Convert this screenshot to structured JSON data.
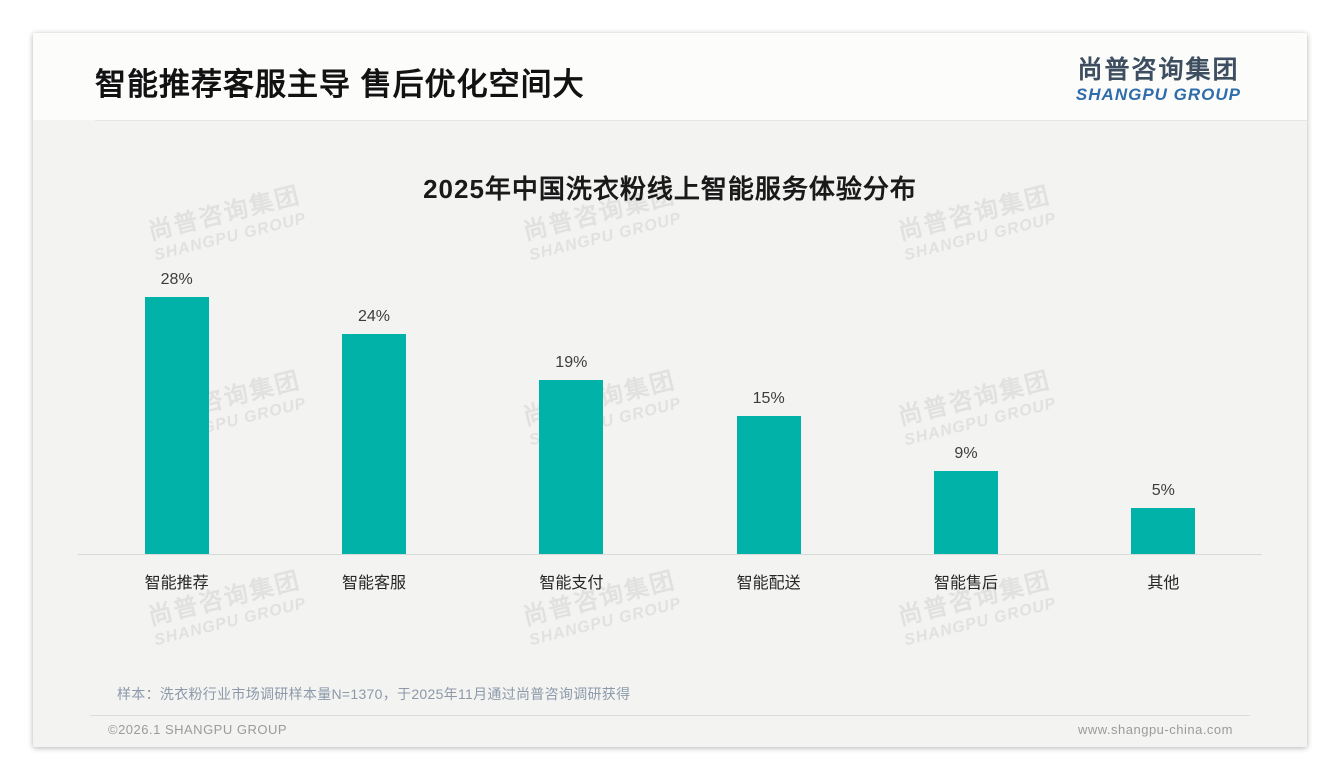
{
  "page": {
    "title": "智能推荐客服主导 售后优化空间大",
    "logo": {
      "cn": "尚普咨询集团",
      "en": "SHANGPU GROUP"
    },
    "watermark": {
      "line1": "尚普咨询集团",
      "line2": "SHANGPU GROUP"
    },
    "sample_note": "样本：洗衣粉行业市场调研样本量N=1370，于2025年11月通过尚普咨询调研获得",
    "footer": {
      "left": "©2026.1 SHANGPU GROUP",
      "right": "www.shangpu-china.com"
    }
  },
  "chart_data": {
    "type": "bar",
    "title": "2025年中国洗衣粉线上智能服务体验分布",
    "categories": [
      "智能推荐",
      "智能客服",
      "智能支付",
      "智能配送",
      "智能售后",
      "其他"
    ],
    "values": [
      28,
      24,
      19,
      15,
      9,
      5
    ],
    "value_labels": [
      "28%",
      "24%",
      "19%",
      "15%",
      "9%",
      "5%"
    ],
    "xlabel": "",
    "ylabel": "",
    "ylim": [
      0,
      30
    ],
    "grid": false,
    "legend": false,
    "bar_color": "#00b2a7"
  },
  "colors": {
    "bar_teal": "#00b2a7",
    "logo_blue": "#2e6cab",
    "logo_slate": "#3e4e61",
    "note_bluegrey": "#8b99a9",
    "slide_bg": "#f3f3f1"
  }
}
